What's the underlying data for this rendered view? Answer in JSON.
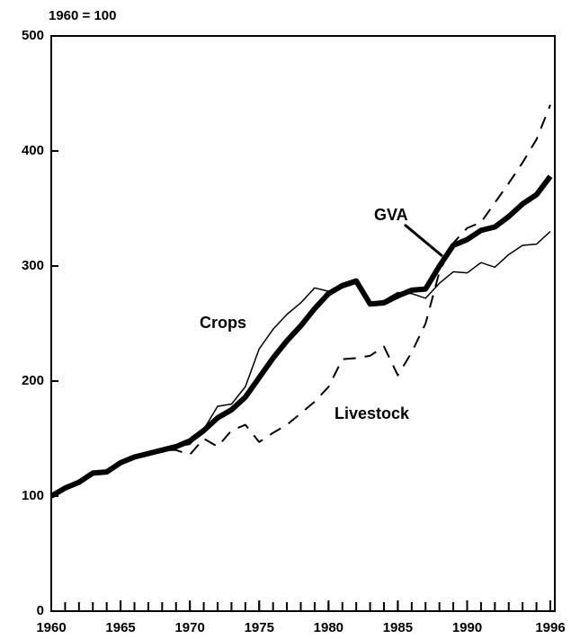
{
  "chart_data": {
    "type": "line",
    "subtitle": "1960 = 100",
    "x": [
      1960,
      1961,
      1962,
      1963,
      1964,
      1965,
      1966,
      1967,
      1968,
      1969,
      1970,
      1971,
      1972,
      1973,
      1974,
      1975,
      1976,
      1977,
      1978,
      1979,
      1980,
      1981,
      1982,
      1983,
      1984,
      1985,
      1986,
      1987,
      1988,
      1989,
      1990,
      1991,
      1992,
      1993,
      1994,
      1995,
      1996
    ],
    "series": [
      {
        "name": "GVA",
        "color": "#000000",
        "width": 6,
        "dashed": false,
        "values": [
          100,
          107,
          112,
          120,
          121,
          129,
          134,
          137,
          140,
          143,
          148,
          157,
          168,
          175,
          186,
          203,
          220,
          235,
          248,
          263,
          276,
          283,
          287,
          267,
          268,
          274,
          279,
          280,
          300,
          318,
          323,
          331,
          334,
          343,
          354,
          362,
          378
        ]
      },
      {
        "name": "Crops",
        "color": "#000000",
        "width": 1.5,
        "dashed": false,
        "values": [
          100,
          107,
          112,
          120,
          121,
          129,
          134,
          137,
          140,
          143,
          145,
          158,
          178,
          180,
          195,
          228,
          245,
          258,
          268,
          281,
          278,
          281,
          285,
          268,
          270,
          277,
          276,
          272,
          285,
          295,
          294,
          303,
          299,
          310,
          318,
          319,
          330
        ]
      },
      {
        "name": "Livestock",
        "color": "#000000",
        "width": 2,
        "dashed": true,
        "values": [
          100,
          107,
          112,
          120,
          121,
          129,
          134,
          137,
          140,
          140,
          136,
          150,
          143,
          157,
          162,
          147,
          155,
          162,
          172,
          182,
          195,
          219,
          220,
          222,
          230,
          205,
          225,
          250,
          295,
          320,
          333,
          338,
          355,
          372,
          390,
          410,
          440
        ]
      }
    ],
    "xlim": [
      1960,
      1996
    ],
    "xticks": [
      1960,
      1965,
      1970,
      1975,
      1980,
      1985,
      1990,
      1996
    ],
    "ylim": [
      0,
      500
    ],
    "yticks": [
      0,
      100,
      200,
      300,
      400,
      500
    ]
  }
}
